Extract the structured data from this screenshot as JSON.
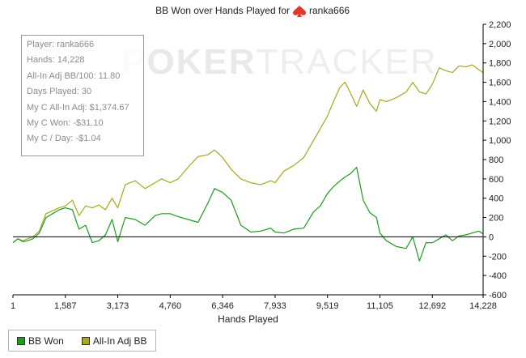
{
  "watermark": {
    "brand_a": "POKER",
    "brand_b": "TRACKER"
  },
  "stats": {
    "player": "Player: ranka666",
    "hands": "Hands: 14,228",
    "adj_bb100": "All-In Adj BB/100: 11.80",
    "days": "Days Played: 30",
    "my_c_adj": "My C All-In Adj: $1,374.67",
    "my_c_won": "My C Won: -$31.10",
    "my_c_day": "My C / Day: -$1.04"
  },
  "legend": {
    "bb_won": "BB Won",
    "adj_bb": "All-In Adj BB"
  },
  "chart_data": {
    "type": "line",
    "title_prefix": "BB Won over Hands Played for",
    "title_player": "ranka666",
    "xlabel": "Hands Played",
    "ylabel": "",
    "xlim": [
      1,
      14228
    ],
    "ylim": [
      -600,
      2200
    ],
    "x_ticks": [
      1,
      1587,
      3173,
      4760,
      6346,
      7933,
      9519,
      11105,
      12692,
      14228
    ],
    "x_tick_labels": [
      "1",
      "1,587",
      "3,173",
      "4,760",
      "6,346",
      "7,933",
      "9,519",
      "11,105",
      "12,692",
      "14,228"
    ],
    "y_ticks": [
      -600,
      -400,
      -200,
      0,
      200,
      400,
      600,
      800,
      1000,
      1200,
      1400,
      1600,
      1800,
      2000,
      2200
    ],
    "y_tick_labels": [
      "-600",
      "-400",
      "-200",
      "0",
      "200",
      "400",
      "600",
      "800",
      "1,000",
      "1,200",
      "1,400",
      "1,600",
      "1,800",
      "2,000",
      "2,200"
    ],
    "grid": false,
    "zero_line": true,
    "legend_position": "bottom-left",
    "series": [
      {
        "name": "BB Won",
        "color": "#1f9b1f",
        "x": [
          1,
          150,
          300,
          450,
          600,
          800,
          1000,
          1200,
          1400,
          1587,
          1800,
          2000,
          2200,
          2400,
          2600,
          2800,
          3000,
          3173,
          3400,
          3700,
          4000,
          4300,
          4500,
          4760,
          5000,
          5300,
          5600,
          5900,
          6100,
          6346,
          6600,
          6900,
          7200,
          7500,
          7800,
          7933,
          8200,
          8500,
          8800,
          9100,
          9300,
          9519,
          9700,
          9900,
          10050,
          10200,
          10400,
          10600,
          10800,
          11000,
          11105,
          11300,
          11600,
          11900,
          12100,
          12300,
          12500,
          12692,
          12900,
          13100,
          13300,
          13500,
          13700,
          13900,
          14100,
          14228
        ],
        "y": [
          -60,
          -20,
          -50,
          -40,
          -20,
          40,
          200,
          240,
          280,
          300,
          280,
          80,
          120,
          -60,
          -40,
          20,
          180,
          -50,
          200,
          180,
          120,
          220,
          240,
          240,
          210,
          180,
          150,
          350,
          500,
          460,
          380,
          120,
          50,
          60,
          90,
          50,
          40,
          80,
          90,
          260,
          320,
          450,
          520,
          580,
          620,
          650,
          720,
          380,
          250,
          200,
          40,
          -40,
          -100,
          -120,
          0,
          -250,
          -60,
          -60,
          -20,
          20,
          -40,
          10,
          20,
          40,
          60,
          30
        ]
      },
      {
        "name": "All-In Adj BB",
        "color": "#a8a81a",
        "x": [
          1,
          150,
          300,
          450,
          600,
          800,
          1000,
          1200,
          1400,
          1587,
          1800,
          2000,
          2200,
          2400,
          2600,
          2800,
          3000,
          3173,
          3400,
          3700,
          4000,
          4300,
          4500,
          4760,
          5000,
          5300,
          5600,
          5900,
          6100,
          6346,
          6600,
          6900,
          7200,
          7500,
          7800,
          7933,
          8200,
          8500,
          8800,
          9100,
          9300,
          9519,
          9700,
          9900,
          10050,
          10200,
          10400,
          10600,
          10800,
          11000,
          11105,
          11300,
          11600,
          11900,
          12100,
          12300,
          12500,
          12692,
          12900,
          13100,
          13300,
          13500,
          13700,
          13900,
          14100,
          14228
        ],
        "y": [
          -60,
          -20,
          -40,
          -20,
          0,
          60,
          240,
          270,
          300,
          320,
          380,
          220,
          320,
          300,
          330,
          280,
          400,
          300,
          540,
          580,
          500,
          560,
          600,
          560,
          600,
          720,
          830,
          850,
          900,
          820,
          700,
          600,
          560,
          540,
          580,
          560,
          680,
          740,
          820,
          1000,
          1120,
          1250,
          1400,
          1550,
          1600,
          1500,
          1350,
          1520,
          1380,
          1300,
          1420,
          1400,
          1440,
          1500,
          1600,
          1500,
          1480,
          1580,
          1750,
          1720,
          1700,
          1770,
          1760,
          1780,
          1730,
          1700
        ]
      }
    ]
  }
}
